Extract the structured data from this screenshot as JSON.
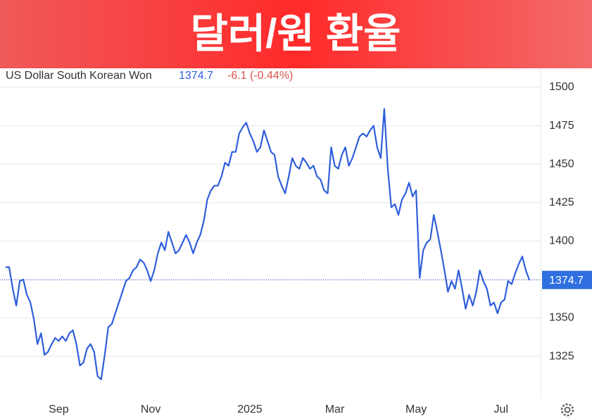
{
  "chart_data": {
    "type": "line",
    "title": "달러/원 환율",
    "series": [
      {
        "name": "US Dollar South Korean Won",
        "color": "#2f5fdb",
        "values": [
          1383,
          1383,
          1369,
          1358,
          1374,
          1375,
          1365,
          1360,
          1349,
          1333,
          1340,
          1326,
          1328,
          1333,
          1337,
          1335,
          1338,
          1335,
          1340,
          1342,
          1333,
          1319,
          1321,
          1330,
          1333,
          1328,
          1312,
          1310,
          1326,
          1344,
          1346,
          1353,
          1360,
          1367,
          1374,
          1376,
          1381,
          1383,
          1388,
          1386,
          1381,
          1374,
          1381,
          1392,
          1399,
          1394,
          1406,
          1399,
          1392,
          1394,
          1399,
          1404,
          1399,
          1392,
          1399,
          1404,
          1413,
          1427,
          1433,
          1436,
          1436,
          1442,
          1451,
          1449,
          1458,
          1458,
          1470,
          1474,
          1477,
          1470,
          1465,
          1458,
          1461,
          1472,
          1465,
          1458,
          1456,
          1442,
          1436,
          1431,
          1442,
          1454,
          1449,
          1447,
          1454,
          1451,
          1447,
          1449,
          1442,
          1440,
          1433,
          1431,
          1461,
          1449,
          1447,
          1456,
          1461,
          1449,
          1454,
          1461,
          1468,
          1470,
          1468,
          1472,
          1475,
          1461,
          1454,
          1486,
          1447,
          1422,
          1424,
          1417,
          1427,
          1431,
          1438,
          1429,
          1433,
          1376,
          1394,
          1399,
          1401,
          1417,
          1406,
          1394,
          1381,
          1367,
          1374,
          1369,
          1381,
          1369,
          1356,
          1365,
          1358,
          1367,
          1381,
          1374,
          1369,
          1358,
          1360,
          1353,
          1360,
          1362,
          1374,
          1372,
          1379,
          1385,
          1390,
          1381,
          1374.7
        ]
      }
    ],
    "categories": [
      null,
      null,
      null,
      null,
      null,
      null,
      null,
      null,
      null,
      null,
      null,
      null,
      null,
      null,
      null,
      "Sep",
      null,
      null,
      null,
      null,
      null,
      null,
      null,
      null,
      null,
      null,
      null,
      null,
      null,
      null,
      null,
      null,
      null,
      null,
      null,
      null,
      null,
      null,
      null,
      null,
      null,
      "Nov",
      null,
      null,
      null,
      null,
      null,
      null,
      null,
      null,
      null,
      null,
      null,
      null,
      null,
      null,
      null,
      null,
      null,
      null,
      null,
      null,
      null,
      null,
      null,
      null,
      null,
      null,
      null,
      "2025",
      null,
      null,
      null,
      null,
      null,
      null,
      null,
      null,
      null,
      null,
      null,
      null,
      null,
      null,
      null,
      null,
      null,
      null,
      null,
      null,
      null,
      null,
      null,
      "Mar",
      null,
      null,
      null,
      null,
      null,
      null,
      null,
      null,
      null,
      null,
      null,
      null,
      null,
      null,
      null,
      null,
      null,
      null,
      null,
      null,
      null,
      null,
      "May",
      null,
      null,
      null,
      null,
      null,
      null,
      null,
      null,
      null,
      null,
      null,
      null,
      null,
      null,
      null,
      null,
      null,
      null,
      null,
      null,
      null,
      null,
      null,
      "Jul",
      null,
      null,
      null,
      null,
      null,
      null,
      null,
      null
    ],
    "last_value": 1374.7,
    "change": "-6.1 (-0.44%)",
    "ylim": [
      1298,
      1511
    ],
    "yticks": [
      1325,
      1350,
      1375,
      1400,
      1425,
      1450,
      1475,
      1500
    ],
    "grid": true
  }
}
